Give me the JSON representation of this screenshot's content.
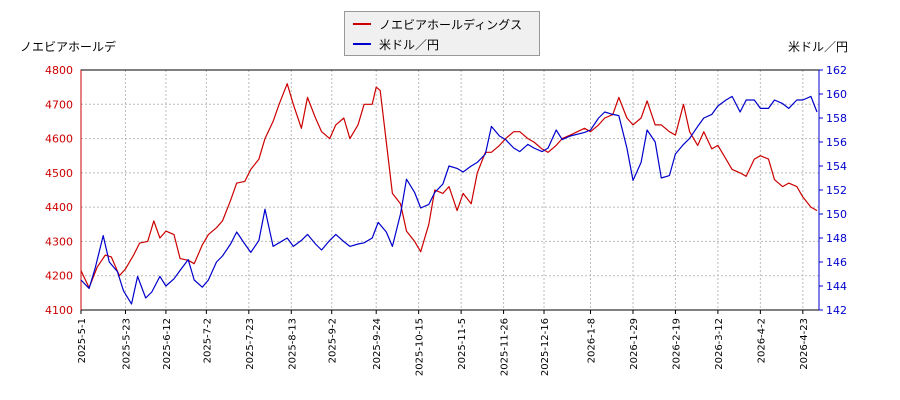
{
  "chart_data": {
    "type": "line",
    "ylabel_left": "ノエビアホールデ",
    "ylabel_right": "米ドル／円",
    "legend": {
      "placement": "top-center",
      "entries": [
        "ノエビアホールディングス",
        "米ドル／円"
      ]
    },
    "grid": true,
    "xlim": [
      "2025-05-01",
      "2026-05-01"
    ],
    "y_left_lim": [
      4100,
      4800
    ],
    "y_right_lim": [
      142,
      162
    ],
    "y_left_ticks": [
      4100,
      4200,
      4300,
      4400,
      4500,
      4600,
      4700,
      4800
    ],
    "y_right_ticks": [
      142,
      144,
      146,
      148,
      150,
      152,
      154,
      156,
      158,
      160,
      162
    ],
    "x_ticks": [
      "2025-5-1",
      "2025-5-23",
      "2025-6-12",
      "2025-7-2",
      "2025-7-23",
      "2025-8-13",
      "2025-9-2",
      "2025-9-24",
      "2025-10-15",
      "2025-11-5",
      "2025-11-26",
      "2025-12-16",
      "2026-1-8",
      "2026-1-29",
      "2026-2-19",
      "2026-3-12",
      "2026-4-2",
      "2026-4-23"
    ],
    "series": [
      {
        "name": "ノエビアホールディングス",
        "color": "#cc0000",
        "axis": "left",
        "points": [
          [
            "2025-05-01",
            4215
          ],
          [
            "2025-05-05",
            4165
          ],
          [
            "2025-05-09",
            4225
          ],
          [
            "2025-05-13",
            4260
          ],
          [
            "2025-05-16",
            4255
          ],
          [
            "2025-05-20",
            4200
          ],
          [
            "2025-05-23",
            4220
          ],
          [
            "2025-05-27",
            4260
          ],
          [
            "2025-05-30",
            4295
          ],
          [
            "2025-06-03",
            4300
          ],
          [
            "2025-06-06",
            4360
          ],
          [
            "2025-06-09",
            4310
          ],
          [
            "2025-06-12",
            4330
          ],
          [
            "2025-06-16",
            4320
          ],
          [
            "2025-06-19",
            4250
          ],
          [
            "2025-06-23",
            4245
          ],
          [
            "2025-06-26",
            4235
          ],
          [
            "2025-06-30",
            4290
          ],
          [
            "2025-07-03",
            4320
          ],
          [
            "2025-07-07",
            4340
          ],
          [
            "2025-07-10",
            4360
          ],
          [
            "2025-07-14",
            4420
          ],
          [
            "2025-07-17",
            4470
          ],
          [
            "2025-07-21",
            4475
          ],
          [
            "2025-07-24",
            4510
          ],
          [
            "2025-07-28",
            4540
          ],
          [
            "2025-07-31",
            4600
          ],
          [
            "2025-08-04",
            4650
          ],
          [
            "2025-08-07",
            4700
          ],
          [
            "2025-08-11",
            4760
          ],
          [
            "2025-08-14",
            4700
          ],
          [
            "2025-08-18",
            4630
          ],
          [
            "2025-08-21",
            4720
          ],
          [
            "2025-08-25",
            4660
          ],
          [
            "2025-08-28",
            4620
          ],
          [
            "2025-09-01",
            4600
          ],
          [
            "2025-09-04",
            4640
          ],
          [
            "2025-09-08",
            4660
          ],
          [
            "2025-09-11",
            4600
          ],
          [
            "2025-09-15",
            4640
          ],
          [
            "2025-09-18",
            4700
          ],
          [
            "2025-09-22",
            4700
          ],
          [
            "2025-09-24",
            4750
          ],
          [
            "2025-09-26",
            4740
          ],
          [
            "2025-09-29",
            4590
          ],
          [
            "2025-10-02",
            4440
          ],
          [
            "2025-10-06",
            4410
          ],
          [
            "2025-10-09",
            4330
          ],
          [
            "2025-10-13",
            4300
          ],
          [
            "2025-10-16",
            4270
          ],
          [
            "2025-10-20",
            4350
          ],
          [
            "2025-10-23",
            4450
          ],
          [
            "2025-10-27",
            4440
          ],
          [
            "2025-10-30",
            4460
          ],
          [
            "2025-11-03",
            4390
          ],
          [
            "2025-11-06",
            4440
          ],
          [
            "2025-11-10",
            4410
          ],
          [
            "2025-11-13",
            4500
          ],
          [
            "2025-11-17",
            4560
          ],
          [
            "2025-11-20",
            4560
          ],
          [
            "2025-11-24",
            4580
          ],
          [
            "2025-11-27",
            4600
          ],
          [
            "2025-12-01",
            4620
          ],
          [
            "2025-12-04",
            4620
          ],
          [
            "2025-12-08",
            4600
          ],
          [
            "2025-12-11",
            4590
          ],
          [
            "2025-12-15",
            4570
          ],
          [
            "2025-12-18",
            4560
          ],
          [
            "2025-12-22",
            4580
          ],
          [
            "2025-12-25",
            4600
          ],
          [
            "2025-12-29",
            4610
          ],
          [
            "2026-01-05",
            4630
          ],
          [
            "2026-01-08",
            4620
          ],
          [
            "2026-01-12",
            4640
          ],
          [
            "2026-01-15",
            4660
          ],
          [
            "2026-01-19",
            4670
          ],
          [
            "2026-01-22",
            4720
          ],
          [
            "2026-01-26",
            4660
          ],
          [
            "2026-01-29",
            4640
          ],
          [
            "2026-02-02",
            4660
          ],
          [
            "2026-02-05",
            4710
          ],
          [
            "2026-02-09",
            4640
          ],
          [
            "2026-02-12",
            4640
          ],
          [
            "2026-02-16",
            4620
          ],
          [
            "2026-02-19",
            4610
          ],
          [
            "2026-02-23",
            4700
          ],
          [
            "2026-02-26",
            4620
          ],
          [
            "2026-03-02",
            4580
          ],
          [
            "2026-03-05",
            4620
          ],
          [
            "2026-03-09",
            4570
          ],
          [
            "2026-03-12",
            4580
          ],
          [
            "2026-03-16",
            4540
          ],
          [
            "2026-03-19",
            4510
          ],
          [
            "2026-03-23",
            4500
          ],
          [
            "2026-03-26",
            4490
          ],
          [
            "2026-03-30",
            4540
          ],
          [
            "2026-04-02",
            4550
          ],
          [
            "2026-04-06",
            4540
          ],
          [
            "2026-04-09",
            4480
          ],
          [
            "2026-04-13",
            4460
          ],
          [
            "2026-04-16",
            4470
          ],
          [
            "2026-04-20",
            4460
          ],
          [
            "2026-04-23",
            4430
          ],
          [
            "2026-04-27",
            4400
          ],
          [
            "2026-04-30",
            4390
          ]
        ]
      },
      {
        "name": "米ドル／円",
        "color": "#0000cc",
        "axis": "right",
        "points": [
          [
            "2025-05-01",
            144.5
          ],
          [
            "2025-05-05",
            143.8
          ],
          [
            "2025-05-08",
            145.5
          ],
          [
            "2025-05-12",
            148.2
          ],
          [
            "2025-05-15",
            146.0
          ],
          [
            "2025-05-19",
            145.2
          ],
          [
            "2025-05-22",
            143.6
          ],
          [
            "2025-05-26",
            142.5
          ],
          [
            "2025-05-29",
            144.8
          ],
          [
            "2025-06-02",
            143.0
          ],
          [
            "2025-06-05",
            143.5
          ],
          [
            "2025-06-09",
            144.8
          ],
          [
            "2025-06-12",
            144.0
          ],
          [
            "2025-06-16",
            144.6
          ],
          [
            "2025-06-19",
            145.3
          ],
          [
            "2025-06-23",
            146.2
          ],
          [
            "2025-06-26",
            144.5
          ],
          [
            "2025-06-30",
            143.9
          ],
          [
            "2025-07-03",
            144.5
          ],
          [
            "2025-07-07",
            146.0
          ],
          [
            "2025-07-10",
            146.5
          ],
          [
            "2025-07-14",
            147.5
          ],
          [
            "2025-07-17",
            148.5
          ],
          [
            "2025-07-21",
            147.5
          ],
          [
            "2025-07-24",
            146.8
          ],
          [
            "2025-07-28",
            147.8
          ],
          [
            "2025-07-31",
            150.4
          ],
          [
            "2025-08-04",
            147.3
          ],
          [
            "2025-08-07",
            147.6
          ],
          [
            "2025-08-11",
            148.0
          ],
          [
            "2025-08-14",
            147.3
          ],
          [
            "2025-08-18",
            147.8
          ],
          [
            "2025-08-21",
            148.3
          ],
          [
            "2025-08-25",
            147.5
          ],
          [
            "2025-08-28",
            147.0
          ],
          [
            "2025-09-01",
            147.8
          ],
          [
            "2025-09-04",
            148.3
          ],
          [
            "2025-09-08",
            147.7
          ],
          [
            "2025-09-11",
            147.3
          ],
          [
            "2025-09-15",
            147.5
          ],
          [
            "2025-09-18",
            147.6
          ],
          [
            "2025-09-22",
            148.0
          ],
          [
            "2025-09-25",
            149.3
          ],
          [
            "2025-09-29",
            148.5
          ],
          [
            "2025-10-02",
            147.3
          ],
          [
            "2025-10-06",
            150.0
          ],
          [
            "2025-10-09",
            152.9
          ],
          [
            "2025-10-13",
            151.8
          ],
          [
            "2025-10-16",
            150.5
          ],
          [
            "2025-10-20",
            150.8
          ],
          [
            "2025-10-23",
            151.8
          ],
          [
            "2025-10-27",
            152.5
          ],
          [
            "2025-10-30",
            154.0
          ],
          [
            "2025-11-03",
            153.8
          ],
          [
            "2025-11-06",
            153.5
          ],
          [
            "2025-11-10",
            154.0
          ],
          [
            "2025-11-13",
            154.3
          ],
          [
            "2025-11-17",
            155.0
          ],
          [
            "2025-11-20",
            157.3
          ],
          [
            "2025-11-24",
            156.5
          ],
          [
            "2025-11-27",
            156.2
          ],
          [
            "2025-12-01",
            155.5
          ],
          [
            "2025-12-04",
            155.2
          ],
          [
            "2025-12-08",
            155.8
          ],
          [
            "2025-12-11",
            155.5
          ],
          [
            "2025-12-15",
            155.2
          ],
          [
            "2025-12-18",
            155.5
          ],
          [
            "2025-12-22",
            157.0
          ],
          [
            "2025-12-25",
            156.2
          ],
          [
            "2025-12-29",
            156.5
          ],
          [
            "2026-01-05",
            156.8
          ],
          [
            "2026-01-08",
            157.0
          ],
          [
            "2026-01-12",
            158.0
          ],
          [
            "2026-01-15",
            158.5
          ],
          [
            "2026-01-19",
            158.3
          ],
          [
            "2026-01-22",
            158.2
          ],
          [
            "2026-01-26",
            155.5
          ],
          [
            "2026-01-29",
            152.8
          ],
          [
            "2026-02-02",
            154.3
          ],
          [
            "2026-02-05",
            157.0
          ],
          [
            "2026-02-09",
            156.0
          ],
          [
            "2026-02-12",
            153.0
          ],
          [
            "2026-02-16",
            153.2
          ],
          [
            "2026-02-19",
            155.0
          ],
          [
            "2026-02-23",
            155.8
          ],
          [
            "2026-02-26",
            156.3
          ],
          [
            "2026-03-02",
            157.3
          ],
          [
            "2026-03-05",
            158.0
          ],
          [
            "2026-03-09",
            158.3
          ],
          [
            "2026-03-12",
            159.0
          ],
          [
            "2026-03-16",
            159.5
          ],
          [
            "2026-03-19",
            159.8
          ],
          [
            "2026-03-23",
            158.5
          ],
          [
            "2026-03-26",
            159.5
          ],
          [
            "2026-03-30",
            159.5
          ],
          [
            "2026-04-02",
            158.8
          ],
          [
            "2026-04-06",
            158.8
          ],
          [
            "2026-04-09",
            159.5
          ],
          [
            "2026-04-13",
            159.2
          ],
          [
            "2026-04-16",
            158.8
          ],
          [
            "2026-04-20",
            159.5
          ],
          [
            "2026-04-23",
            159.5
          ],
          [
            "2026-04-27",
            159.8
          ],
          [
            "2026-04-30",
            158.5
          ]
        ]
      }
    ]
  }
}
